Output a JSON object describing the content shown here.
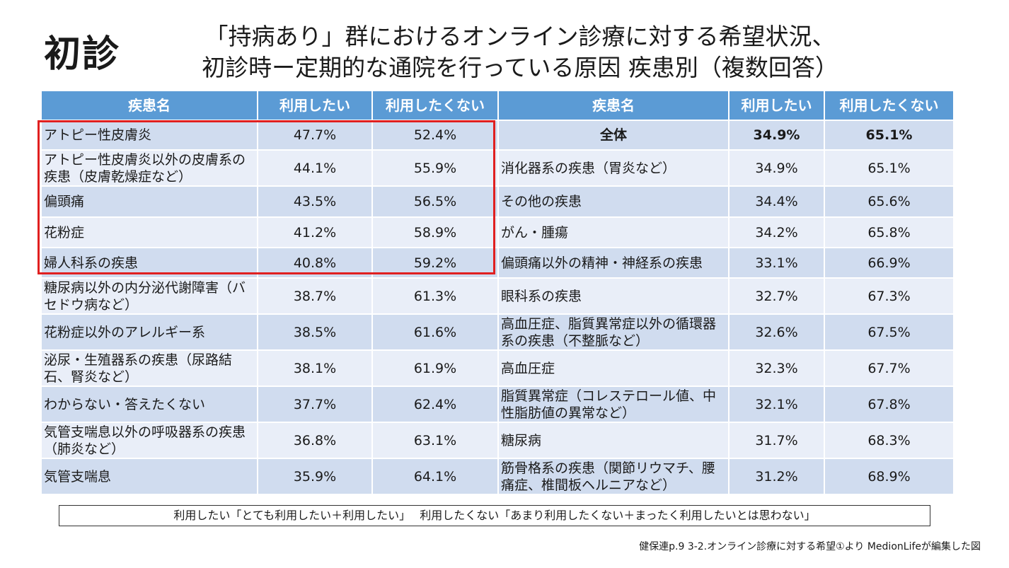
{
  "slide_label": "初診",
  "title": {
    "line1": "「持病あり」群におけるオンライン診療に対する希望状況、",
    "line2": "初診時ー定期的な通院を行っている原因 疾患別（複数回答）"
  },
  "table": {
    "headers": [
      "疾患名",
      "利用したい",
      "利用したくない",
      "疾患名",
      "利用したい",
      "利用したくない"
    ],
    "rows": [
      [
        "アトピー性皮膚炎",
        "47.7%",
        "52.4%",
        "全体",
        "34.9%",
        "65.1%"
      ],
      [
        "アトピー性皮膚炎以外の皮膚系の 疾患（皮膚乾燥症など）",
        "44.1%",
        "55.9%",
        "消化器系の疾患（胃炎など）",
        "34.9%",
        "65.1%"
      ],
      [
        "偏頭痛",
        "43.5%",
        "56.5%",
        "その他の疾患",
        "34.4%",
        "65.6%"
      ],
      [
        "花粉症",
        "41.2%",
        "58.9%",
        "がん・腫瘍",
        "34.2%",
        "65.8%"
      ],
      [
        "婦人科系の疾患",
        "40.8%",
        "59.2%",
        "偏頭痛以外の精神・神経系の疾患",
        "33.1%",
        "66.9%"
      ],
      [
        "糖尿病以外の内分泌代謝障害（バセドウ病など）",
        "38.7%",
        "61.3%",
        "眼科系の疾患",
        "32.7%",
        "67.3%"
      ],
      [
        "花粉症以外のアレルギー系",
        "38.5%",
        "61.6%",
        "高血圧症、脂質異常症以外の循環器系の疾患（不整脈など）",
        "32.6%",
        "67.5%"
      ],
      [
        "泌尿・生殖器系の疾患（尿路結石、腎炎など）",
        "38.1%",
        "61.9%",
        "高血圧症",
        "32.3%",
        "67.7%"
      ],
      [
        "わからない・答えたくない",
        "37.7%",
        "62.4%",
        "脂質異常症（コレステロール値、中性脂肪値の異常など）",
        "32.1%",
        "67.8%"
      ],
      [
        "気管支喘息以外の呼吸器系の疾患（肺炎など）",
        "36.8%",
        "63.1%",
        "糖尿病",
        "31.7%",
        "68.3%"
      ],
      [
        "気管支喘息",
        "35.9%",
        "64.1%",
        "筋骨格系の疾患（関節リウマチ、腰痛症、椎間板ヘルニアなど）",
        "31.2%",
        "68.9%"
      ]
    ]
  },
  "legend": "利用したい「とても利用したい＋利用したい」　 利用したくない「あまり利用したくない＋まったく利用したいとは思わない」",
  "source": "健保連p.9 3-2.オンライン診療に対する希望①より MedionLifeが編集した図",
  "colors": {
    "header_bg": "#5b9bd5",
    "row_odd": "#d0dcef",
    "row_even": "#e9eef8",
    "highlight_border": "#e02020"
  }
}
